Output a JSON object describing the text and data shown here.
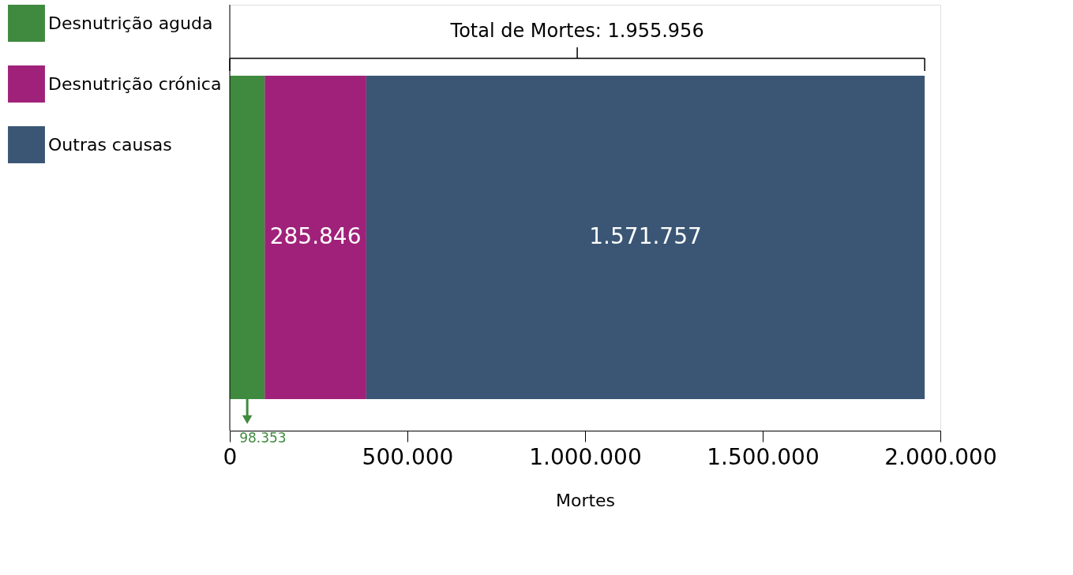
{
  "chart_data": {
    "type": "bar",
    "orientation": "horizontal",
    "stacked": true,
    "categories": [
      null
    ],
    "series": [
      {
        "name": "Desnutrição aguda",
        "color": "#3f8a3f",
        "values": [
          98353
        ],
        "value_labels": [
          "98.353"
        ]
      },
      {
        "name": "Desnutrição crónica",
        "color": "#a0217a",
        "values": [
          285846
        ],
        "value_labels": [
          "285.846"
        ]
      },
      {
        "name": "Outras causas",
        "color": "#3a5674",
        "values": [
          1571757
        ],
        "value_labels": [
          "1.571.757"
        ]
      }
    ],
    "totals": [
      "Total de Mortes: 1.955.956"
    ],
    "xlabel": "Mortes",
    "xlim": [
      0,
      2000000
    ],
    "xticks": [
      0,
      {
        "value": 500000,
        "label": "500.000"
      },
      {
        "value": 1000000,
        "label": "1.000.000"
      },
      {
        "value": 1500000,
        "label": "1.500.000"
      },
      {
        "value": 2000000,
        "label": "2.000.000"
      }
    ],
    "legend": "left",
    "grid": false
  }
}
